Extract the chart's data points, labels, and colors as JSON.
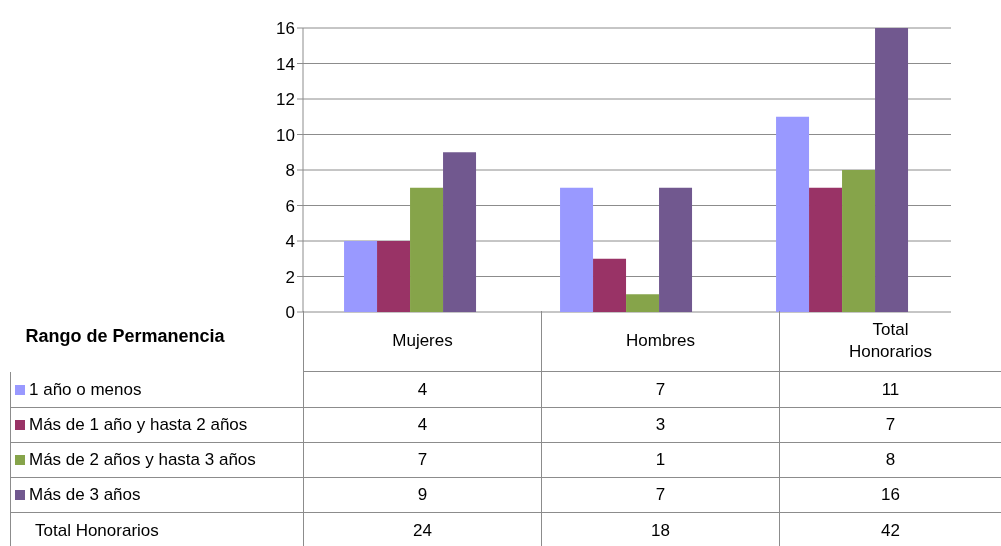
{
  "chart_data": {
    "type": "bar",
    "legend_title": "Rango de Permanencia",
    "categories": [
      "Mujeres",
      "Hombres",
      "Total Honorarios"
    ],
    "series": [
      {
        "name": "1 año o menos",
        "color": "#9999ff",
        "values": [
          4,
          7,
          11
        ]
      },
      {
        "name": "Más de 1 año y hasta 2 años",
        "color": "#993366",
        "values": [
          4,
          3,
          7
        ]
      },
      {
        "name": "Más de 2 años y hasta 3 años",
        "color": "#86a44a",
        "values": [
          7,
          1,
          8
        ]
      },
      {
        "name": "Más de 3 años",
        "color": "#71588f",
        "values": [
          9,
          7,
          16
        ]
      }
    ],
    "ylim": [
      0,
      16
    ],
    "yticks": [
      0,
      2,
      4,
      6,
      8,
      10,
      12,
      14,
      16
    ],
    "grid": "y",
    "legend": "bottom",
    "data_labels": true,
    "annotations": [
      "Total Honorarios",
      "24",
      "18",
      "42"
    ]
  }
}
